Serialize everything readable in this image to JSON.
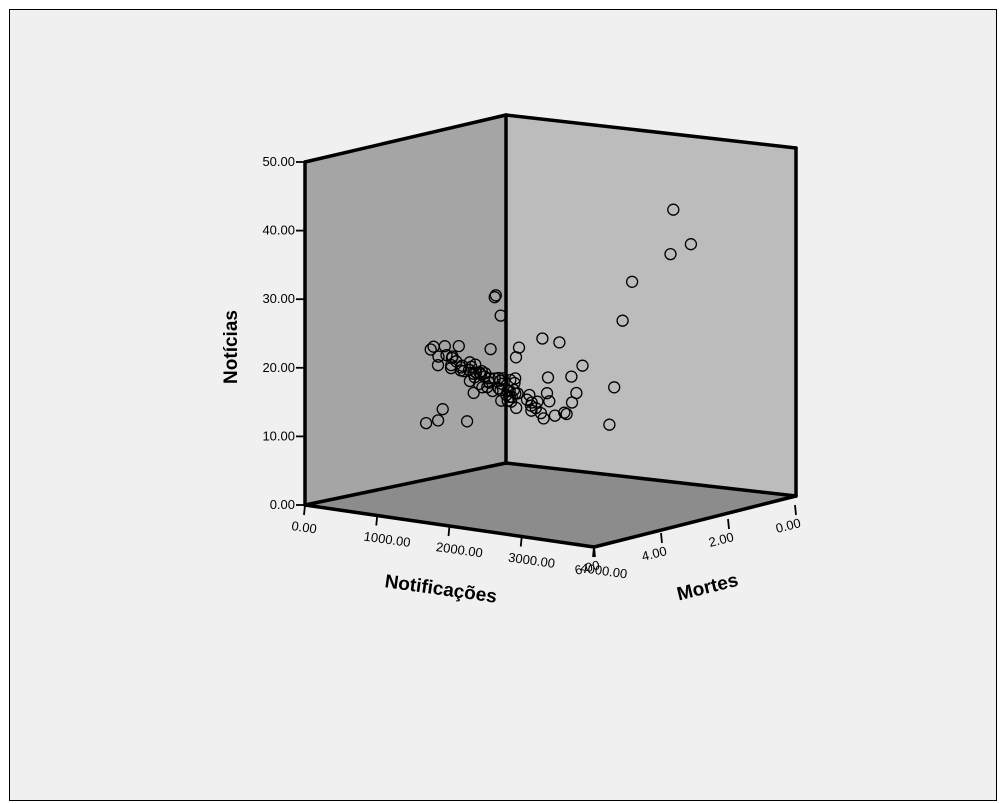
{
  "chart_data": {
    "type": "scatter",
    "dimensions": "3d",
    "xlabel": "Notificações",
    "ylabel": "Mortes",
    "zlabel": "Notícias",
    "xlim": [
      0,
      4000
    ],
    "ylim": [
      0,
      6
    ],
    "zlim": [
      0,
      50
    ],
    "x_ticks": [
      "0.00",
      "1000.00",
      "2000.00",
      "3000.00",
      "4000.00"
    ],
    "y_ticks": [
      "0.00",
      "2.00",
      "4.00",
      "6.00"
    ],
    "z_ticks": [
      "0.00",
      "10.00",
      "20.00",
      "30.00",
      "40.00",
      "50.00"
    ],
    "colors": {
      "background": "#f0f0f0",
      "left_wall": "#a5a5a5",
      "back_wall": "#bcbcbc",
      "floor": "#8c8c8c",
      "marker": "#000000"
    },
    "points": [
      {
        "x": 300,
        "y": 2.0,
        "z": 16
      },
      {
        "x": 350,
        "y": 1.5,
        "z": 15
      },
      {
        "x": 400,
        "y": 2.5,
        "z": 17
      },
      {
        "x": 420,
        "y": 1.0,
        "z": 14
      },
      {
        "x": 450,
        "y": 3.0,
        "z": 18
      },
      {
        "x": 480,
        "y": 2.0,
        "z": 13
      },
      {
        "x": 500,
        "y": 1.8,
        "z": 16
      },
      {
        "x": 520,
        "y": 2.2,
        "z": 15
      },
      {
        "x": 550,
        "y": 2.8,
        "z": 19
      },
      {
        "x": 560,
        "y": 1.2,
        "z": 12
      },
      {
        "x": 580,
        "y": 3.5,
        "z": 21
      },
      {
        "x": 600,
        "y": 2.0,
        "z": 14
      },
      {
        "x": 620,
        "y": 2.6,
        "z": 17
      },
      {
        "x": 640,
        "y": 1.6,
        "z": 15
      },
      {
        "x": 660,
        "y": 3.2,
        "z": 20
      },
      {
        "x": 680,
        "y": 2.4,
        "z": 16
      },
      {
        "x": 700,
        "y": 1.4,
        "z": 13
      },
      {
        "x": 720,
        "y": 2.9,
        "z": 18
      },
      {
        "x": 740,
        "y": 2.1,
        "z": 15
      },
      {
        "x": 760,
        "y": 3.8,
        "z": 22
      },
      {
        "x": 780,
        "y": 1.9,
        "z": 14
      },
      {
        "x": 800,
        "y": 2.7,
        "z": 17
      },
      {
        "x": 820,
        "y": 3.4,
        "z": 19
      },
      {
        "x": 840,
        "y": 2.3,
        "z": 16
      },
      {
        "x": 860,
        "y": 1.7,
        "z": 12
      },
      {
        "x": 880,
        "y": 3.0,
        "z": 18
      },
      {
        "x": 900,
        "y": 2.5,
        "z": 15
      },
      {
        "x": 920,
        "y": 4.0,
        "z": 21
      },
      {
        "x": 950,
        "y": 2.0,
        "z": 14
      },
      {
        "x": 980,
        "y": 3.6,
        "z": 20
      },
      {
        "x": 1000,
        "y": 2.8,
        "z": 17
      },
      {
        "x": 1020,
        "y": 1.5,
        "z": 13
      },
      {
        "x": 1050,
        "y": 3.3,
        "z": 19
      },
      {
        "x": 1080,
        "y": 2.2,
        "z": 16
      },
      {
        "x": 1100,
        "y": 4.2,
        "z": 23
      },
      {
        "x": 1130,
        "y": 2.6,
        "z": 15
      },
      {
        "x": 1150,
        "y": 3.1,
        "z": 18
      },
      {
        "x": 1180,
        "y": 1.8,
        "z": 12
      },
      {
        "x": 1200,
        "y": 3.9,
        "z": 20
      },
      {
        "x": 1230,
        "y": 2.4,
        "z": 16
      },
      {
        "x": 1250,
        "y": 3.5,
        "z": 17
      },
      {
        "x": 1280,
        "y": 2.9,
        "z": 14
      },
      {
        "x": 1300,
        "y": 4.4,
        "z": 22
      },
      {
        "x": 1330,
        "y": 2.1,
        "z": 13
      },
      {
        "x": 1350,
        "y": 3.7,
        "z": 19
      },
      {
        "x": 1380,
        "y": 2.7,
        "z": 15
      },
      {
        "x": 1400,
        "y": 4.1,
        "z": 21
      },
      {
        "x": 1430,
        "y": 3.2,
        "z": 17
      },
      {
        "x": 1450,
        "y": 2.5,
        "z": 14
      },
      {
        "x": 1480,
        "y": 4.6,
        "z": 24
      },
      {
        "x": 1500,
        "y": 3.0,
        "z": 16
      },
      {
        "x": 1530,
        "y": 3.8,
        "z": 18
      },
      {
        "x": 1550,
        "y": 2.3,
        "z": 12
      },
      {
        "x": 1580,
        "y": 4.3,
        "z": 20
      },
      {
        "x": 1600,
        "y": 3.4,
        "z": 15
      },
      {
        "x": 1650,
        "y": 2.8,
        "z": 13
      },
      {
        "x": 1700,
        "y": 4.0,
        "z": 19
      },
      {
        "x": 1750,
        "y": 3.6,
        "z": 16
      },
      {
        "x": 1800,
        "y": 4.8,
        "z": 22
      },
      {
        "x": 1850,
        "y": 3.1,
        "z": 14
      },
      {
        "x": 1900,
        "y": 4.5,
        "z": 18
      },
      {
        "x": 1950,
        "y": 3.9,
        "z": 15
      },
      {
        "x": 2000,
        "y": 4.2,
        "z": 17
      },
      {
        "x": 2050,
        "y": 3.3,
        "z": 13
      },
      {
        "x": 2100,
        "y": 4.7,
        "z": 20
      },
      {
        "x": 2150,
        "y": 3.7,
        "z": 16
      },
      {
        "x": 2200,
        "y": 4.4,
        "z": 18
      },
      {
        "x": 2300,
        "y": 3.5,
        "z": 14
      },
      {
        "x": 2400,
        "y": 4.9,
        "z": 21
      },
      {
        "x": 2500,
        "y": 4.1,
        "z": 17
      },
      {
        "x": 2600,
        "y": 3.8,
        "z": 15
      },
      {
        "x": 2700,
        "y": 4.6,
        "z": 19
      },
      {
        "x": 2800,
        "y": 4.3,
        "z": 16
      },
      {
        "x": 2900,
        "y": 5.0,
        "z": 22
      },
      {
        "x": 3000,
        "y": 4.5,
        "z": 18
      },
      {
        "x": 3100,
        "y": 3.6,
        "z": 14
      },
      {
        "x": 3200,
        "y": 4.8,
        "z": 20
      },
      {
        "x": 400,
        "y": 1.2,
        "z": 26
      },
      {
        "x": 600,
        "y": 1.6,
        "z": 27
      },
      {
        "x": 900,
        "y": 2.1,
        "z": 25
      },
      {
        "x": 3600,
        "y": 4.0,
        "z": 36
      },
      {
        "x": 3700,
        "y": 4.5,
        "z": 31
      },
      {
        "x": 3800,
        "y": 3.2,
        "z": 46
      },
      {
        "x": 3900,
        "y": 3.5,
        "z": 40
      },
      {
        "x": 3950,
        "y": 3.0,
        "z": 41
      },
      {
        "x": 250,
        "y": 1.0,
        "z": 18
      },
      {
        "x": 330,
        "y": 2.6,
        "z": 11
      },
      {
        "x": 470,
        "y": 3.4,
        "z": 10
      },
      {
        "x": 510,
        "y": 0.8,
        "z": 17
      },
      {
        "x": 690,
        "y": 1.1,
        "z": 19
      },
      {
        "x": 730,
        "y": 3.6,
        "z": 11
      },
      {
        "x": 1060,
        "y": 1.2,
        "z": 21
      },
      {
        "x": 1270,
        "y": 3.9,
        "z": 12
      },
      {
        "x": 1620,
        "y": 1.9,
        "z": 22
      },
      {
        "x": 2250,
        "y": 2.9,
        "z": 19
      },
      {
        "x": 2450,
        "y": 3.0,
        "z": 21
      },
      {
        "x": 2750,
        "y": 2.7,
        "z": 18
      }
    ]
  }
}
